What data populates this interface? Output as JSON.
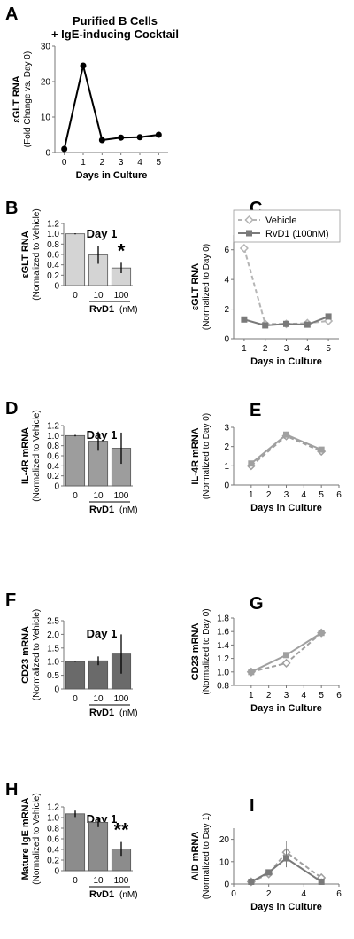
{
  "panels": [
    {
      "letter": "A",
      "type": "line",
      "title_lines": [
        "Purified B Cells",
        "+ IgE-inducing Cocktail"
      ],
      "ylabel": "εGLT RNA",
      "ylabel_sub": "(Fold Change vs. Day 0)",
      "xlabel": "Days in Culture",
      "xlim": [
        -0.5,
        5.5
      ],
      "ylim": [
        0,
        30
      ],
      "xticks": [
        0,
        1,
        2,
        3,
        4,
        5
      ],
      "yticks": [
        0,
        10,
        20,
        30
      ],
      "series": [
        {
          "x": [
            0,
            1,
            2,
            3,
            4,
            5
          ],
          "y": [
            1,
            24.5,
            3.5,
            4.2,
            4.3,
            5
          ],
          "color": "#000000",
          "dash": false,
          "marker": "circle"
        }
      ]
    },
    {
      "letter": "B",
      "type": "bar",
      "title": "Day 1",
      "ylabel": "εGLT RNA",
      "ylabel_sub": "(Normalized to Vehicle)",
      "categories": [
        "0",
        "10",
        "100"
      ],
      "values": [
        1.0,
        0.59,
        0.34
      ],
      "errors": [
        0.01,
        0.17,
        0.1
      ],
      "ylim": [
        0,
        1.2
      ],
      "yticks": [
        "0",
        "0.2",
        "0.4",
        "0.6",
        "0.8",
        "1.0",
        "1.2"
      ],
      "bar_color": "#d4d4d4",
      "group_label": "RvD1",
      "unit_label": "(nM)",
      "annotation": "*",
      "annotation_index": 2
    },
    {
      "letter": "C",
      "type": "line",
      "ylabel": "εGLT RNA",
      "ylabel_sub": "(Normalized to Day 0)",
      "xlabel": "Days in Culture",
      "xlim": [
        0.5,
        5.5
      ],
      "ylim": [
        0,
        7
      ],
      "xticks": [
        1,
        2,
        3,
        4,
        5
      ],
      "yticks": [
        0,
        2,
        4,
        6
      ],
      "legend": [
        "Vehicle",
        "RvD1 (100nM)"
      ],
      "series": [
        {
          "name": "Vehicle",
          "x": [
            1,
            2,
            3,
            4,
            5
          ],
          "y": [
            6.1,
            1.0,
            1.0,
            1.05,
            1.2
          ],
          "color": "#b5b5b5",
          "dash": true,
          "marker": "diamond"
        },
        {
          "name": "RvD1 (100nM)",
          "x": [
            1,
            2,
            3,
            4,
            5
          ],
          "y": [
            1.3,
            0.9,
            1.0,
            0.95,
            1.5
          ],
          "color": "#7a7a7a",
          "dash": false,
          "marker": "square"
        }
      ]
    },
    {
      "letter": "D",
      "type": "bar",
      "title": "Day 1",
      "ylabel": "IL-4R mRNA",
      "ylabel_sub": "(Normalized to Vehicle)",
      "categories": [
        "0",
        "10",
        "100"
      ],
      "values": [
        1.0,
        0.89,
        0.75
      ],
      "errors": [
        0.015,
        0.19,
        0.31
      ],
      "ylim": [
        0,
        1.2
      ],
      "yticks": [
        "0",
        "0.2",
        "0.4",
        "0.6",
        "0.8",
        "1.0",
        "1.2"
      ],
      "bar_color": "#9d9d9d",
      "group_label": "RvD1",
      "unit_label": "(nM)"
    },
    {
      "letter": "E",
      "type": "line",
      "ylabel": "IL-4R mRNA",
      "ylabel_sub": "(Normalized to Day 0)",
      "xlabel": "Days in Culture",
      "xlim": [
        0,
        6
      ],
      "ylim": [
        0,
        3
      ],
      "xticks": [
        1,
        2,
        3,
        4,
        5,
        6
      ],
      "yticks": [
        0,
        1,
        2,
        3
      ],
      "series": [
        {
          "name": "Vehicle",
          "x": [
            1,
            3,
            5
          ],
          "y": [
            1.0,
            2.55,
            1.75
          ],
          "color": "#a0a0a0",
          "dash": true,
          "marker": "diamond"
        },
        {
          "name": "RvD1 (100nM)",
          "x": [
            1,
            3,
            5
          ],
          "y": [
            1.12,
            2.62,
            1.84
          ],
          "color": "#a0a0a0",
          "dash": false,
          "marker": "square"
        }
      ]
    },
    {
      "letter": "F",
      "type": "bar",
      "title": "Day 1",
      "ylabel": "CD23 mRNA",
      "ylabel_sub": "(Normalized to Vehicle)",
      "categories": [
        "0",
        "10",
        "100"
      ],
      "values": [
        1.0,
        1.03,
        1.28
      ],
      "errors": [
        0.01,
        0.16,
        0.72
      ],
      "ylim": [
        0,
        2.5
      ],
      "yticks": [
        "0",
        "0.5",
        "1.0",
        "1.5",
        "2.0",
        "2.5"
      ],
      "bar_color": "#6a6a6a",
      "group_label": "RvD1",
      "unit_label": "(nM)"
    },
    {
      "letter": "G",
      "type": "line",
      "ylabel": "CD23 mRNA",
      "ylabel_sub": "(Normalized to Day 0)",
      "xlabel": "Days in Culture",
      "xlim": [
        0,
        6
      ],
      "ylim": [
        0.8,
        1.8
      ],
      "xticks": [
        1,
        2,
        3,
        4,
        5,
        6
      ],
      "yticks": [
        "0.8",
        "1.0",
        "1.2",
        "1.4",
        "1.6",
        "1.8"
      ],
      "series": [
        {
          "name": "Vehicle",
          "x": [
            1,
            3,
            5
          ],
          "y": [
            1.0,
            1.13,
            1.58
          ],
          "color": "#a0a0a0",
          "dash": true,
          "marker": "diamond"
        },
        {
          "name": "RvD1 (100nM)",
          "x": [
            1,
            3,
            5
          ],
          "y": [
            1.0,
            1.25,
            1.58
          ],
          "color": "#a0a0a0",
          "dash": false,
          "marker": "square"
        }
      ]
    },
    {
      "letter": "H",
      "type": "bar",
      "title": "Day 1",
      "ylabel": "Mature IgE mRNA",
      "ylabel_sub": "(Normalized to Vehicle)",
      "categories": [
        "0",
        "10",
        "100"
      ],
      "values": [
        1.07,
        0.91,
        0.41
      ],
      "errors": [
        0.06,
        0.09,
        0.13
      ],
      "ylim": [
        0,
        1.2
      ],
      "yticks": [
        "0",
        "0.2",
        "0.4",
        "0.6",
        "0.8",
        "1.0",
        "1.2"
      ],
      "bar_color": "#8c8c8c",
      "group_label": "RvD1",
      "unit_label": "(nM)",
      "annotation": "**",
      "annotation_index": 2
    },
    {
      "letter": "I",
      "type": "line",
      "ylabel": "AID mRNA",
      "ylabel_sub": "(Normalized to Day 1)",
      "xlabel": "Days in Culture",
      "xlim": [
        0,
        6
      ],
      "ylim": [
        0,
        25
      ],
      "xticks": [
        0,
        2,
        4,
        6
      ],
      "yticks": [
        0,
        10,
        20
      ],
      "series": [
        {
          "name": "Vehicle",
          "x": [
            1,
            2,
            3,
            5
          ],
          "y": [
            1.0,
            4.5,
            14.2,
            2.8
          ],
          "errors": [
            0.3,
            0.6,
            5.0,
            0.6
          ],
          "color": "#a0a0a0",
          "dash": true,
          "marker": "diamond"
        },
        {
          "name": "RvD1 (100nM)",
          "x": [
            1,
            2,
            3,
            5
          ],
          "y": [
            1.0,
            5.2,
            11.5,
            1.0
          ],
          "errors": [
            0.3,
            0.6,
            4.0,
            1.5
          ],
          "color": "#7a7a7a",
          "dash": false,
          "marker": "square"
        }
      ]
    }
  ],
  "chart_data": [
    {
      "type": "line",
      "title": "Purified B Cells + IgE-inducing Cocktail",
      "xlabel": "Days in Culture",
      "ylabel": "εGLT RNA (Fold Change vs. Day 0)",
      "x": [
        0,
        1,
        2,
        3,
        4,
        5
      ],
      "series": [
        {
          "values": [
            1,
            24.5,
            3.5,
            4.2,
            4.3,
            5
          ]
        }
      ],
      "ylim": [
        0,
        30
      ]
    },
    {
      "type": "bar",
      "title": "Day 1",
      "ylabel": "εGLT RNA (Normalized to Vehicle)",
      "xlabel": "RvD1 (nM)",
      "categories": [
        "0",
        "10",
        "100"
      ],
      "values": [
        1.0,
        0.59,
        0.34
      ],
      "ylim": [
        0,
        1.2
      ]
    },
    {
      "type": "line",
      "xlabel": "Days in Culture",
      "ylabel": "εGLT RNA (Normalized to Day 0)",
      "x": [
        1,
        2,
        3,
        4,
        5
      ],
      "series": [
        {
          "name": "Vehicle",
          "values": [
            6.1,
            1.0,
            1.0,
            1.05,
            1.2
          ]
        },
        {
          "name": "RvD1 (100nM)",
          "values": [
            1.3,
            0.9,
            1.0,
            0.95,
            1.5
          ]
        }
      ],
      "ylim": [
        0,
        7
      ],
      "legend": "top-right"
    },
    {
      "type": "bar",
      "title": "Day 1",
      "ylabel": "IL-4R mRNA (Normalized to Vehicle)",
      "xlabel": "RvD1 (nM)",
      "categories": [
        "0",
        "10",
        "100"
      ],
      "values": [
        1.0,
        0.89,
        0.75
      ],
      "ylim": [
        0,
        1.2
      ]
    },
    {
      "type": "line",
      "xlabel": "Days in Culture",
      "ylabel": "IL-4R mRNA (Normalized to Day 0)",
      "x": [
        1,
        3,
        5
      ],
      "series": [
        {
          "values": [
            1.0,
            2.55,
            1.75
          ]
        },
        {
          "values": [
            1.12,
            2.62,
            1.84
          ]
        }
      ],
      "ylim": [
        0,
        3
      ]
    },
    {
      "type": "bar",
      "title": "Day 1",
      "ylabel": "CD23 mRNA (Normalized to Vehicle)",
      "xlabel": "RvD1 (nM)",
      "categories": [
        "0",
        "10",
        "100"
      ],
      "values": [
        1.0,
        1.03,
        1.28
      ],
      "ylim": [
        0,
        2.5
      ]
    },
    {
      "type": "line",
      "xlabel": "Days in Culture",
      "ylabel": "CD23 mRNA (Normalized to Day 0)",
      "x": [
        1,
        3,
        5
      ],
      "series": [
        {
          "values": [
            1.0,
            1.13,
            1.58
          ]
        },
        {
          "values": [
            1.0,
            1.25,
            1.58
          ]
        }
      ],
      "ylim": [
        0.8,
        1.8
      ]
    },
    {
      "type": "bar",
      "title": "Day 1",
      "ylabel": "Mature IgE mRNA (Normalized to Vehicle)",
      "xlabel": "RvD1 (nM)",
      "categories": [
        "0",
        "10",
        "100"
      ],
      "values": [
        1.07,
        0.91,
        0.41
      ],
      "ylim": [
        0,
        1.2
      ]
    },
    {
      "type": "line",
      "xlabel": "Days in Culture",
      "ylabel": "AID mRNA (Normalized to Day 1)",
      "x": [
        1,
        2,
        3,
        5
      ],
      "series": [
        {
          "values": [
            1.0,
            4.5,
            14.2,
            2.8
          ]
        },
        {
          "values": [
            1.0,
            5.2,
            11.5,
            1.0
          ]
        }
      ],
      "ylim": [
        0,
        25
      ]
    }
  ]
}
